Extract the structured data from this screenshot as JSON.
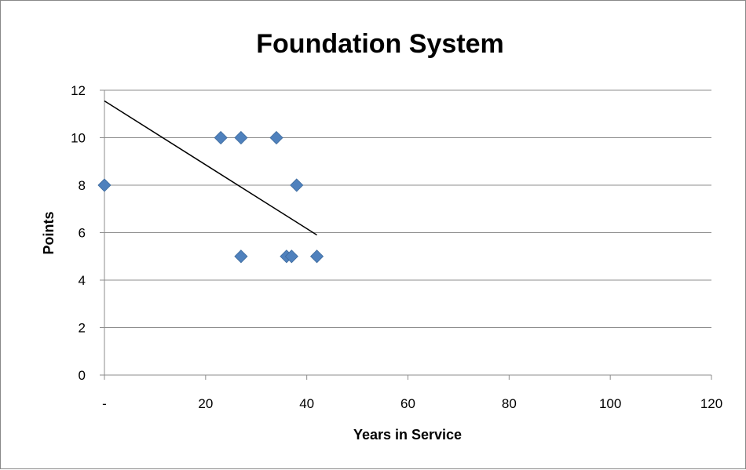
{
  "chart_data": {
    "type": "scatter",
    "title": "Foundation System",
    "xlabel": "Years in Service",
    "ylabel": "Points",
    "xlim": [
      0,
      120
    ],
    "ylim": [
      0,
      12
    ],
    "x_ticks": [
      0,
      20,
      40,
      60,
      80,
      100,
      120
    ],
    "x_tick_labels": [
      "-",
      "20",
      "40",
      "60",
      "80",
      "100",
      "120"
    ],
    "y_ticks": [
      0,
      2,
      4,
      6,
      8,
      10,
      12
    ],
    "y_tick_labels": [
      "0",
      "2",
      "4",
      "6",
      "8",
      "10",
      "12"
    ],
    "grid": "horizontal",
    "legend": "none",
    "series": [
      {
        "x": [
          0,
          23,
          27,
          34,
          38,
          27,
          36,
          37,
          42
        ],
        "y": [
          8,
          10,
          10,
          10,
          8,
          5,
          5,
          5,
          5
        ],
        "color": "#4F81BD",
        "marker": "diamond"
      }
    ],
    "trendline": {
      "x": [
        0,
        42
      ],
      "y": [
        11.55,
        5.9
      ],
      "color": "#000000"
    }
  }
}
